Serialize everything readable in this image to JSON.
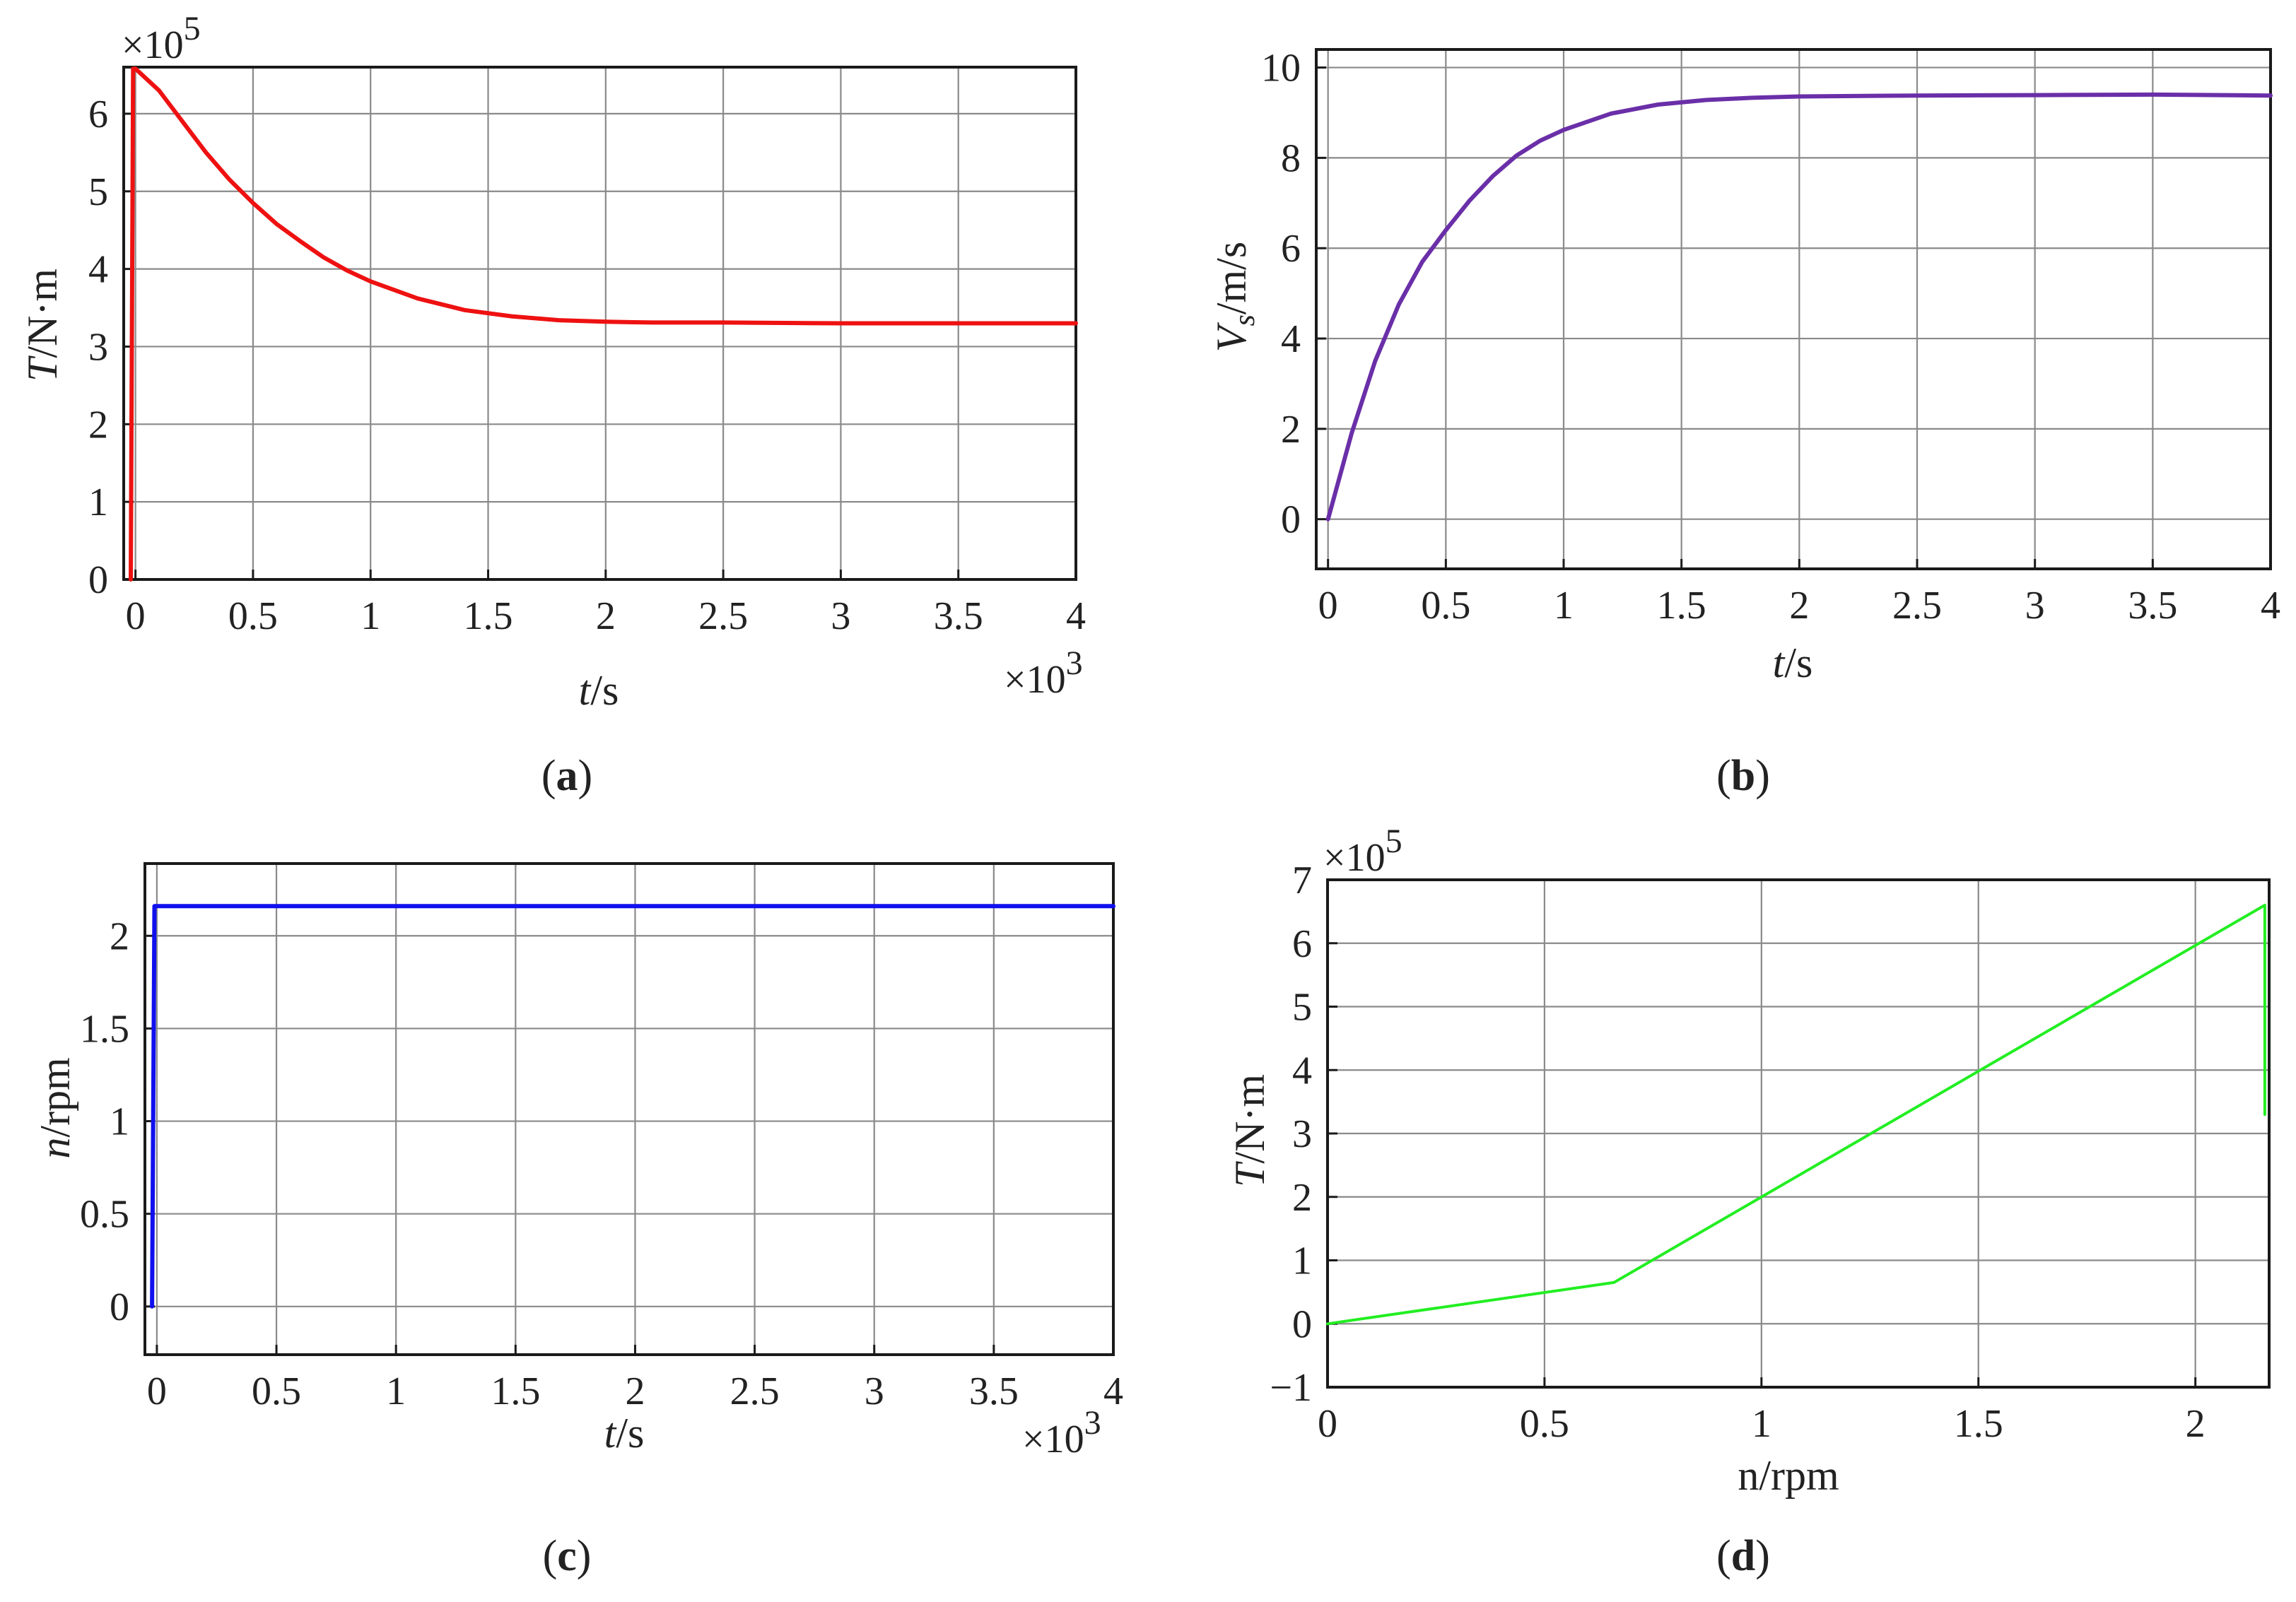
{
  "figure": {
    "panels": [
      {
        "id": "a",
        "caption_letter": "a",
        "xlabel_var": "t",
        "xlabel_unit": "/s",
        "ylabel_var": "T",
        "ylabel_unit": "/N·m",
        "x_multiplier_base": "×10",
        "x_multiplier_exp": "3",
        "y_multiplier_base": "×10",
        "y_multiplier_exp": "5"
      },
      {
        "id": "b",
        "caption_letter": "b",
        "xlabel_var": "t",
        "xlabel_unit": "/s",
        "ylabel_var": "V",
        "ylabel_sub": "s",
        "ylabel_unit": "/m/s"
      },
      {
        "id": "c",
        "caption_letter": "c",
        "xlabel_var": "t",
        "xlabel_unit": "/s",
        "ylabel_var": "n",
        "ylabel_unit": "/rpm",
        "x_multiplier_base": "×10",
        "x_multiplier_exp": "3"
      },
      {
        "id": "d",
        "caption_letter": "d",
        "xlabel_var": "n/rpm",
        "xlabel_unit": "",
        "ylabel_var": "T",
        "ylabel_unit": "/N·m",
        "y_multiplier_base": "×10",
        "y_multiplier_exp": "5"
      }
    ]
  },
  "chart_data": [
    {
      "id": "a",
      "type": "line",
      "title": "",
      "xlabel": "t/s",
      "ylabel": "T/N·m",
      "x_scale_note": "×10^3",
      "y_scale_note": "×10^5",
      "xlim": [
        -0.05,
        4
      ],
      "ylim": [
        0,
        6.6
      ],
      "xticks": [
        0,
        0.5,
        1,
        1.5,
        2,
        2.5,
        3,
        3.5,
        4
      ],
      "xtick_labels": [
        "0",
        "0.5",
        "1",
        "1.5",
        "2",
        "2.5",
        "3",
        "3.5",
        "4"
      ],
      "yticks": [
        0,
        1,
        2,
        3,
        4,
        5,
        6
      ],
      "ytick_labels": [
        "0",
        "1",
        "2",
        "3",
        "4",
        "5",
        "6"
      ],
      "grid": true,
      "series": [
        {
          "name": "T",
          "color": "#ee1111",
          "x": [
            -0.02,
            -0.01,
            0.0,
            0.1,
            0.2,
            0.3,
            0.4,
            0.5,
            0.6,
            0.7,
            0.8,
            0.9,
            1.0,
            1.2,
            1.4,
            1.6,
            1.8,
            2.0,
            2.2,
            2.5,
            3.0,
            3.5,
            4.0
          ],
          "y": [
            0.0,
            6.58,
            6.58,
            6.3,
            5.9,
            5.5,
            5.15,
            4.85,
            4.58,
            4.36,
            4.15,
            3.98,
            3.84,
            3.62,
            3.47,
            3.39,
            3.34,
            3.32,
            3.31,
            3.31,
            3.3,
            3.3,
            3.3
          ]
        }
      ]
    },
    {
      "id": "b",
      "type": "line",
      "title": "",
      "xlabel": "t/s",
      "ylabel": "Vs/m/s",
      "xlim": [
        -0.05,
        4
      ],
      "ylim": [
        -1.1,
        10.4
      ],
      "xticks": [
        0,
        0.5,
        1,
        1.5,
        2,
        2.5,
        3,
        3.5,
        4
      ],
      "xtick_labels": [
        "0",
        "0.5",
        "1",
        "1.5",
        "2",
        "2.5",
        "3",
        "3.5",
        "4"
      ],
      "yticks": [
        0,
        2,
        4,
        6,
        8,
        10
      ],
      "ytick_labels": [
        "0",
        "2",
        "4",
        "6",
        "8",
        "10"
      ],
      "grid": true,
      "series": [
        {
          "name": "Vs",
          "color": "#6a2fa8",
          "x": [
            0.0,
            0.1,
            0.2,
            0.3,
            0.4,
            0.5,
            0.6,
            0.7,
            0.8,
            0.9,
            1.0,
            1.2,
            1.4,
            1.6,
            1.8,
            2.0,
            2.5,
            3.0,
            3.5,
            4.0
          ],
          "y": [
            0.0,
            1.9,
            3.5,
            4.75,
            5.7,
            6.4,
            7.05,
            7.6,
            8.05,
            8.38,
            8.62,
            8.98,
            9.18,
            9.28,
            9.33,
            9.36,
            9.38,
            9.39,
            9.4,
            9.38
          ]
        }
      ]
    },
    {
      "id": "c",
      "type": "line",
      "title": "",
      "xlabel": "t/s",
      "ylabel": "n/rpm",
      "x_scale_note": "×10^3",
      "xlim": [
        -0.05,
        4
      ],
      "ylim": [
        -0.26,
        2.39
      ],
      "xticks": [
        0,
        0.5,
        1,
        1.5,
        2,
        2.5,
        3,
        3.5,
        4
      ],
      "xtick_labels": [
        "0",
        "0.5",
        "1",
        "1.5",
        "2",
        "2.5",
        "3",
        "3.5",
        "4"
      ],
      "yticks": [
        0,
        0.5,
        1,
        1.5,
        2
      ],
      "ytick_labels": [
        "0",
        "0.5",
        "1",
        "1.5",
        "2"
      ],
      "grid": true,
      "series": [
        {
          "name": "n",
          "color": "#1010ee",
          "x": [
            -0.02,
            -0.01,
            0.0,
            4.0
          ],
          "y": [
            0.0,
            2.16,
            2.16,
            2.16
          ]
        }
      ]
    },
    {
      "id": "d",
      "type": "line",
      "title": "",
      "xlabel": "n/rpm",
      "ylabel": "T/N·m",
      "y_scale_note": "×10^5",
      "xlim": [
        0,
        2.17
      ],
      "ylim": [
        -1,
        7
      ],
      "xticks": [
        0,
        0.5,
        1,
        1.5,
        2
      ],
      "xtick_labels": [
        "0",
        "0.5",
        "1",
        "1.5",
        "2"
      ],
      "yticks": [
        -1,
        0,
        1,
        2,
        3,
        4,
        5,
        6,
        7
      ],
      "ytick_labels": [
        "−1",
        "0",
        "1",
        "2",
        "3",
        "4",
        "5",
        "6",
        "7"
      ],
      "grid": true,
      "series": [
        {
          "name": "T vs n",
          "color": "#22ee22",
          "x": [
            0.0,
            0.66,
            2.16,
            2.16
          ],
          "y": [
            0.0,
            0.65,
            6.6,
            3.3
          ]
        }
      ]
    }
  ]
}
